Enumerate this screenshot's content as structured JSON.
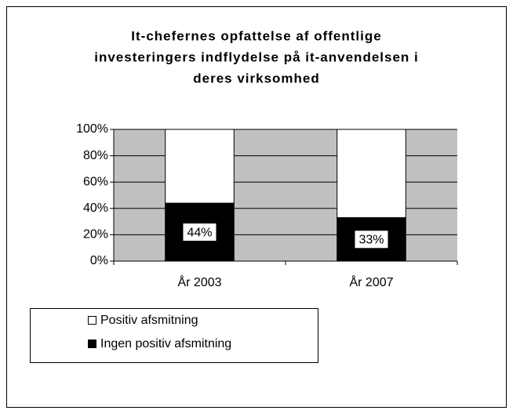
{
  "chart_data": {
    "type": "bar",
    "stacked": true,
    "title": [
      "It-chefernes opfattelse af offentlige",
      "investeringers indflydelse på it-anvendelsen i",
      "deres virksomhed"
    ],
    "categories": [
      "År 2003",
      "År 2007"
    ],
    "series": [
      {
        "name": "Ingen positiv afsmitning",
        "color": "#000000",
        "values": [
          44,
          33
        ],
        "value_labels": [
          "44%",
          "33%"
        ]
      },
      {
        "name": "Positiv afsmitning",
        "color": "#ffffff",
        "values": [
          56,
          67
        ]
      }
    ],
    "ylim": [
      0,
      100
    ],
    "yticks": [
      {
        "value": 0,
        "label": "0%"
      },
      {
        "value": 20,
        "label": "20%"
      },
      {
        "value": 40,
        "label": "40%"
      },
      {
        "value": 60,
        "label": "60%"
      },
      {
        "value": 80,
        "label": "80%"
      },
      {
        "value": 100,
        "label": "100%"
      }
    ],
    "grid": true,
    "plot_background": "#c0c0c0"
  }
}
